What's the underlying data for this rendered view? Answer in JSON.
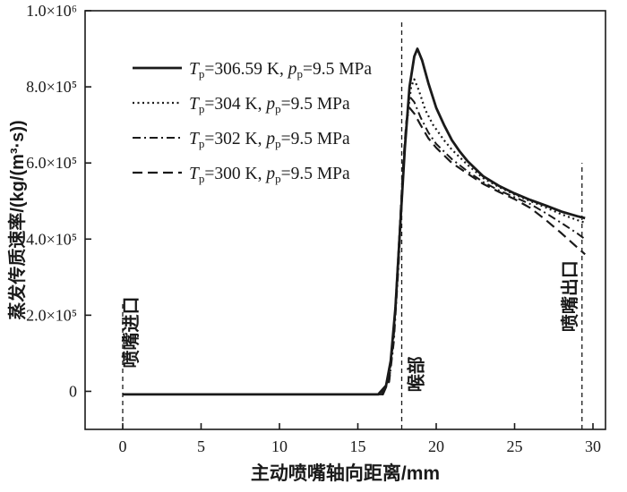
{
  "figure": {
    "background": "#ffffff",
    "line_color": "#1a1a1a"
  },
  "chart_data": {
    "type": "line",
    "title": "",
    "xlabel": "主动喷嘴轴向距离/mm",
    "ylabel": "蒸发传质速率/(kg/(m³·s))",
    "xlim": [
      -2.4,
      30.8
    ],
    "ylim": [
      -100000,
      1000000
    ],
    "grid": false,
    "legend_position": "upper-left",
    "x_ticks": [
      {
        "v": 0,
        "label": "0"
      },
      {
        "v": 5,
        "label": "5"
      },
      {
        "v": 10,
        "label": "10"
      },
      {
        "v": 15,
        "label": "15"
      },
      {
        "v": 20,
        "label": "20"
      },
      {
        "v": 25,
        "label": "25"
      },
      {
        "v": 30,
        "label": "30"
      }
    ],
    "y_ticks": [
      {
        "v": 0,
        "label": "0"
      },
      {
        "v": 200000,
        "label": "2.0×10⁵"
      },
      {
        "v": 400000,
        "label": "4.0×10⁵"
      },
      {
        "v": 600000,
        "label": "6.0×10⁵"
      },
      {
        "v": 800000,
        "label": "8.0×10⁵"
      },
      {
        "v": 1000000,
        "label": "1.0×10⁶"
      }
    ],
    "annotations": [
      {
        "x": 0,
        "line_top": 235000,
        "label": "喷嘴进口",
        "label_x": 0.9,
        "label_y": 155000
      },
      {
        "x": 17.8,
        "line_top": 970000,
        "label": "喉部",
        "label_x": 19.1,
        "label_y": 45000
      },
      {
        "x": 29.3,
        "line_top": 600000,
        "label": "喷嘴出口",
        "label_x": 28.9,
        "label_y": 250000
      }
    ],
    "series": [
      {
        "label": "Tp=306.59 K, pp=9.5 MPa",
        "var_T": "T",
        "sub": "p",
        "temp_eq": "=306.59 K, ",
        "var_p": "p",
        "press_eq": "=9.5 MPa",
        "dash": "solid",
        "width": 2.8,
        "points": [
          [
            0,
            -8000
          ],
          [
            5,
            -8000
          ],
          [
            10,
            -8000
          ],
          [
            15,
            -8000
          ],
          [
            16.3,
            -8000
          ],
          [
            16.8,
            15000
          ],
          [
            17.1,
            80000
          ],
          [
            17.4,
            220000
          ],
          [
            17.7,
            430000
          ],
          [
            18.0,
            640000
          ],
          [
            18.3,
            800000
          ],
          [
            18.6,
            880000
          ],
          [
            18.8,
            900000
          ],
          [
            19.1,
            870000
          ],
          [
            19.5,
            810000
          ],
          [
            20,
            745000
          ],
          [
            20.5,
            700000
          ],
          [
            21,
            660000
          ],
          [
            21.5,
            630000
          ],
          [
            22,
            605000
          ],
          [
            23,
            565000
          ],
          [
            24,
            540000
          ],
          [
            25,
            520000
          ],
          [
            26,
            503000
          ],
          [
            27,
            488000
          ],
          [
            28,
            472000
          ],
          [
            29,
            460000
          ],
          [
            29.5,
            455000
          ]
        ]
      },
      {
        "label": "Tp=304 K, pp=9.5 MPa",
        "var_T": "T",
        "sub": "p",
        "temp_eq": "=304 K, ",
        "var_p": "p",
        "press_eq": "=9.5 MPa",
        "dash": "dotted",
        "width": 2.2,
        "points": [
          [
            0,
            -8000
          ],
          [
            10,
            -8000
          ],
          [
            15,
            -8000
          ],
          [
            16.4,
            -8000
          ],
          [
            16.9,
            20000
          ],
          [
            17.2,
            100000
          ],
          [
            17.5,
            280000
          ],
          [
            17.8,
            520000
          ],
          [
            18.1,
            700000
          ],
          [
            18.4,
            800000
          ],
          [
            18.6,
            820000
          ],
          [
            18.9,
            790000
          ],
          [
            19.3,
            740000
          ],
          [
            19.8,
            700000
          ],
          [
            20.5,
            660000
          ],
          [
            21,
            635000
          ],
          [
            22,
            595000
          ],
          [
            23,
            560000
          ],
          [
            24,
            537000
          ],
          [
            25,
            517000
          ],
          [
            26,
            500000
          ],
          [
            27,
            483000
          ],
          [
            28,
            465000
          ],
          [
            29,
            450000
          ],
          [
            29.5,
            443000
          ]
        ]
      },
      {
        "label": "Tp=302 K, pp=9.5 MPa",
        "var_T": "T",
        "sub": "p",
        "temp_eq": "=302 K, ",
        "var_p": "p",
        "press_eq": "=9.5 MPa",
        "dash": "dashdot",
        "width": 2.0,
        "points": [
          [
            0,
            -8000
          ],
          [
            10,
            -8000
          ],
          [
            15,
            -8000
          ],
          [
            16.5,
            -8000
          ],
          [
            17.0,
            25000
          ],
          [
            17.3,
            130000
          ],
          [
            17.6,
            330000
          ],
          [
            17.9,
            570000
          ],
          [
            18.1,
            700000
          ],
          [
            18.3,
            775000
          ],
          [
            18.6,
            760000
          ],
          [
            19,
            720000
          ],
          [
            19.5,
            680000
          ],
          [
            20,
            650000
          ],
          [
            21,
            610000
          ],
          [
            22,
            578000
          ],
          [
            23,
            550000
          ],
          [
            24,
            528000
          ],
          [
            25,
            510000
          ],
          [
            26,
            492000
          ],
          [
            27,
            468000
          ],
          [
            28,
            442000
          ],
          [
            29,
            415000
          ],
          [
            29.5,
            400000
          ]
        ]
      },
      {
        "label": "Tp=300 K, pp=9.5 MPa",
        "var_T": "T",
        "sub": "p",
        "temp_eq": "=300 K, ",
        "var_p": "p",
        "press_eq": "=9.5 MPa",
        "dash": "dashed",
        "width": 2.2,
        "points": [
          [
            0,
            -8000
          ],
          [
            10,
            -8000
          ],
          [
            15,
            -8000
          ],
          [
            16.6,
            -8000
          ],
          [
            17.0,
            30000
          ],
          [
            17.3,
            150000
          ],
          [
            17.6,
            370000
          ],
          [
            17.9,
            600000
          ],
          [
            18.1,
            710000
          ],
          [
            18.3,
            745000
          ],
          [
            18.6,
            730000
          ],
          [
            19,
            700000
          ],
          [
            19.5,
            665000
          ],
          [
            20,
            640000
          ],
          [
            21,
            600000
          ],
          [
            22,
            572000
          ],
          [
            23,
            545000
          ],
          [
            24,
            524000
          ],
          [
            25,
            505000
          ],
          [
            26,
            482000
          ],
          [
            27,
            450000
          ],
          [
            28,
            415000
          ],
          [
            29,
            378000
          ],
          [
            29.5,
            360000
          ]
        ]
      }
    ]
  }
}
